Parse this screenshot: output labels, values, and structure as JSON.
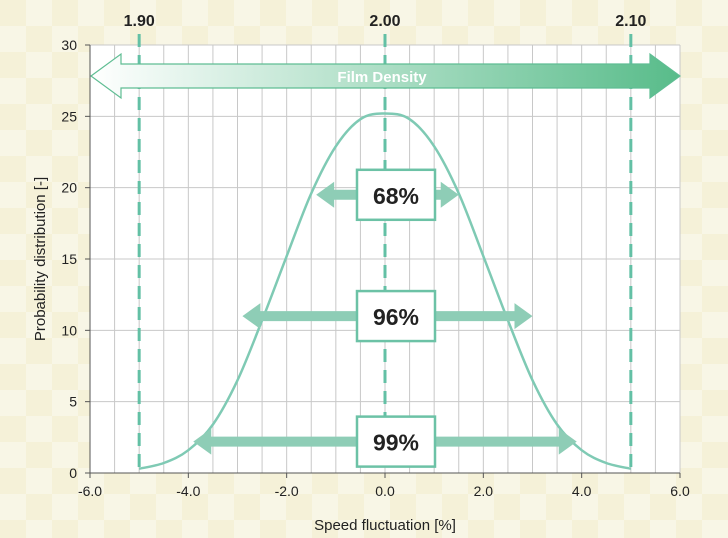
{
  "chart_data": {
    "type": "line",
    "xlabel": "Speed fluctuation [%]",
    "ylabel": "Probability distribution [-]",
    "xlim": [
      -6,
      6
    ],
    "ylim": [
      0,
      30
    ],
    "x_ticks": [
      "-6.0",
      "-4.0",
      "-2.0",
      "0.0",
      "2.0",
      "4.0",
      "6.0"
    ],
    "y_ticks": [
      "0",
      "5",
      "10",
      "15",
      "20",
      "25",
      "30"
    ],
    "grid": true,
    "series": [
      {
        "x": [
          -5.0,
          -4.5,
          -4.0,
          -3.5,
          -3.0,
          -2.5,
          -2.0,
          -1.5,
          -1.0,
          -0.5,
          0.0,
          0.5,
          1.0,
          1.5,
          2.0,
          2.5,
          3.0,
          3.5,
          4.0,
          4.5,
          5.0
        ],
        "y": [
          0.3,
          0.7,
          1.6,
          3.4,
          6.5,
          10.7,
          15.2,
          19.6,
          22.9,
          24.8,
          25.2,
          24.8,
          22.9,
          19.6,
          15.2,
          10.7,
          6.5,
          3.4,
          1.6,
          0.7,
          0.3
        ]
      }
    ],
    "density_axis": {
      "label": "Film Density",
      "ticks": [
        {
          "label": "1.90",
          "x": -5.0
        },
        {
          "label": "2.00",
          "x": 0.0
        },
        {
          "label": "2.10",
          "x": 5.0
        }
      ]
    },
    "intervals": [
      {
        "label": "68%",
        "from": -1.4,
        "to": 1.5,
        "y": 19.5
      },
      {
        "label": "96%",
        "from": -2.9,
        "to": 3.0,
        "y": 11.0
      },
      {
        "label": "99%",
        "from": -3.9,
        "to": 3.9,
        "y": 2.2
      }
    ],
    "colors": {
      "curve": "#7fcab4",
      "dashed": "#63c0a5",
      "arrow": "#8ecdb6",
      "box_border": "#6cc2a6",
      "density_arrow_end": "#58bc8a"
    }
  }
}
